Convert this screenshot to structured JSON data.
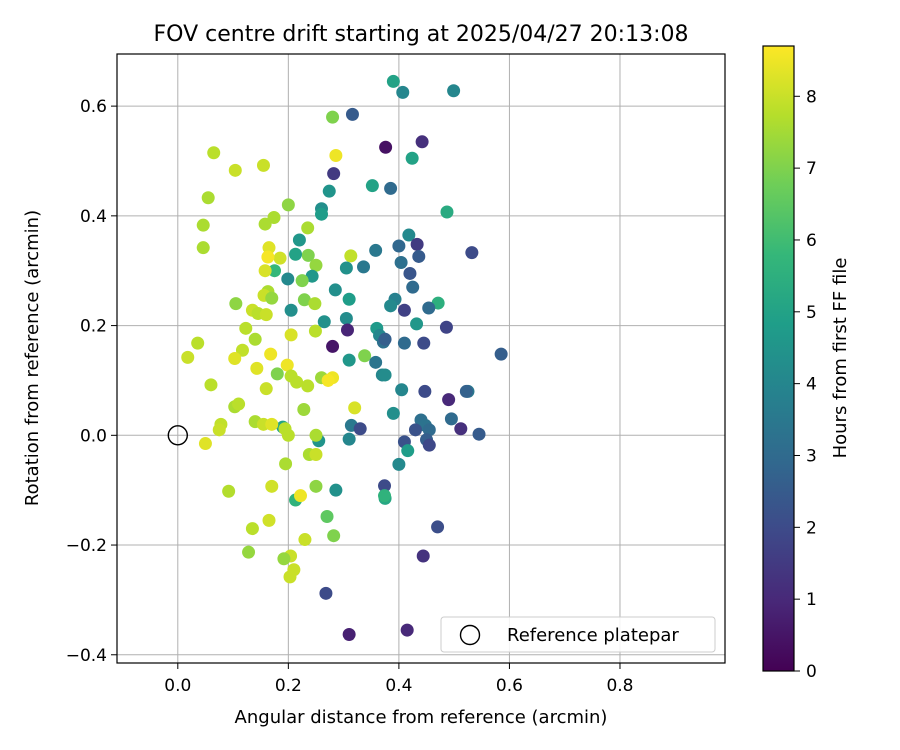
{
  "chart_data": {
    "type": "scatter",
    "title": "FOV centre drift starting at 2025/04/27 20:13:08",
    "xlabel": "Angular distance from reference (arcmin)",
    "ylabel": "Rotation from reference (arcmin)",
    "xlim": [
      -0.11,
      0.99
    ],
    "ylim": [
      -0.415,
      0.695
    ],
    "xticks": [
      0.0,
      0.2,
      0.4,
      0.6,
      0.8
    ],
    "xtick_labels": [
      "0.0",
      "0.2",
      "0.4",
      "0.6",
      "0.8"
    ],
    "yticks": [
      -0.4,
      -0.2,
      0.0,
      0.2,
      0.4,
      0.6
    ],
    "ytick_labels": [
      "−0.4",
      "−0.2",
      "0.0",
      "0.2",
      "0.4",
      "0.6"
    ],
    "grid": true,
    "legend": {
      "placement": "lower-right",
      "entries": [
        {
          "label": "Reference platepar",
          "marker": "open-circle"
        }
      ]
    },
    "reference_point": {
      "x": 0.0,
      "y": 0.0
    },
    "colorbar": {
      "label": "Hours from first FF file",
      "colormap": "viridis",
      "range": [
        0,
        8.7
      ],
      "ticks": [
        0,
        1,
        2,
        3,
        4,
        5,
        6,
        7,
        8
      ],
      "tick_labels": [
        "0",
        "1",
        "2",
        "3",
        "4",
        "5",
        "6",
        "7",
        "8"
      ],
      "stops": [
        "#440154",
        "#482878",
        "#3e4989",
        "#31688e",
        "#26828e",
        "#1f9e89",
        "#35b779",
        "#6ece58",
        "#b5de2b",
        "#fde725"
      ]
    },
    "points": [
      [
        0.39,
        0.645,
        5.0
      ],
      [
        0.407,
        0.625,
        4.0
      ],
      [
        0.499,
        0.628,
        4.0
      ],
      [
        0.316,
        0.585,
        2.5
      ],
      [
        0.28,
        0.58,
        7.0
      ],
      [
        0.442,
        0.535,
        1.2
      ],
      [
        0.376,
        0.525,
        0.4
      ],
      [
        0.424,
        0.505,
        5.0
      ],
      [
        0.286,
        0.51,
        8.5
      ],
      [
        0.065,
        0.515,
        7.8
      ],
      [
        0.155,
        0.492,
        8.0
      ],
      [
        0.104,
        0.483,
        8.0
      ],
      [
        0.282,
        0.477,
        1.5
      ],
      [
        0.352,
        0.455,
        5.0
      ],
      [
        0.385,
        0.45,
        3.0
      ],
      [
        0.274,
        0.445,
        4.5
      ],
      [
        0.055,
        0.433,
        7.6
      ],
      [
        0.2,
        0.42,
        7.2
      ],
      [
        0.26,
        0.413,
        4.3
      ],
      [
        0.487,
        0.407,
        5.3
      ],
      [
        0.26,
        0.403,
        4.8
      ],
      [
        0.174,
        0.397,
        7.6
      ],
      [
        0.158,
        0.385,
        7.6
      ],
      [
        0.046,
        0.383,
        7.6
      ],
      [
        0.235,
        0.378,
        7.6
      ],
      [
        0.418,
        0.365,
        4.1
      ],
      [
        0.22,
        0.356,
        4.6
      ],
      [
        0.4,
        0.345,
        2.9
      ],
      [
        0.433,
        0.348,
        1.5
      ],
      [
        0.046,
        0.342,
        7.6
      ],
      [
        0.165,
        0.342,
        8.3
      ],
      [
        0.358,
        0.337,
        3.5
      ],
      [
        0.532,
        0.333,
        2.0
      ],
      [
        0.236,
        0.328,
        7.0
      ],
      [
        0.213,
        0.33,
        5.0
      ],
      [
        0.313,
        0.327,
        7.9
      ],
      [
        0.185,
        0.323,
        8.1
      ],
      [
        0.163,
        0.325,
        8.6
      ],
      [
        0.436,
        0.326,
        2.5
      ],
      [
        0.404,
        0.315,
        3.2
      ],
      [
        0.25,
        0.31,
        7.3
      ],
      [
        0.336,
        0.307,
        3.5
      ],
      [
        0.305,
        0.305,
        4.4
      ],
      [
        0.175,
        0.3,
        5.8
      ],
      [
        0.158,
        0.3,
        8.2
      ],
      [
        0.42,
        0.295,
        2.3
      ],
      [
        0.243,
        0.29,
        4.6
      ],
      [
        0.199,
        0.285,
        4.1
      ],
      [
        0.225,
        0.282,
        7.0
      ],
      [
        0.425,
        0.27,
        3.0
      ],
      [
        0.285,
        0.265,
        4.3
      ],
      [
        0.163,
        0.262,
        7.6
      ],
      [
        0.156,
        0.255,
        8.0
      ],
      [
        0.17,
        0.25,
        7.3
      ],
      [
        0.229,
        0.247,
        7.0
      ],
      [
        0.393,
        0.248,
        3.8
      ],
      [
        0.31,
        0.248,
        4.8
      ],
      [
        0.105,
        0.24,
        7.2
      ],
      [
        0.471,
        0.241,
        5.5
      ],
      [
        0.248,
        0.24,
        7.6
      ],
      [
        0.385,
        0.236,
        4.1
      ],
      [
        0.135,
        0.228,
        8.0
      ],
      [
        0.205,
        0.228,
        4.3
      ],
      [
        0.454,
        0.232,
        3.0
      ],
      [
        0.41,
        0.228,
        1.7
      ],
      [
        0.145,
        0.222,
        7.8
      ],
      [
        0.16,
        0.22,
        8.0
      ],
      [
        0.265,
        0.207,
        4.4
      ],
      [
        0.305,
        0.213,
        4.2
      ],
      [
        0.432,
        0.203,
        4.6
      ],
      [
        0.123,
        0.195,
        7.8
      ],
      [
        0.486,
        0.197,
        1.8
      ],
      [
        0.36,
        0.195,
        4.7
      ],
      [
        0.307,
        0.192,
        0.9
      ],
      [
        0.249,
        0.19,
        7.8
      ],
      [
        0.365,
        0.182,
        4.0
      ],
      [
        0.372,
        0.17,
        3.2
      ],
      [
        0.375,
        0.175,
        2.6
      ],
      [
        0.41,
        0.168,
        3.0
      ],
      [
        0.445,
        0.168,
        2.0
      ],
      [
        0.205,
        0.183,
        8.2
      ],
      [
        0.28,
        0.162,
        0.5
      ],
      [
        0.14,
        0.175,
        7.6
      ],
      [
        0.036,
        0.168,
        7.8
      ],
      [
        0.117,
        0.155,
        7.9
      ],
      [
        0.585,
        0.148,
        2.6
      ],
      [
        0.018,
        0.142,
        8.0
      ],
      [
        0.168,
        0.148,
        8.5
      ],
      [
        0.103,
        0.14,
        8.3
      ],
      [
        0.338,
        0.145,
        7.0
      ],
      [
        0.31,
        0.137,
        4.6
      ],
      [
        0.358,
        0.133,
        3.4
      ],
      [
        0.143,
        0.122,
        8.3
      ],
      [
        0.198,
        0.128,
        8.5
      ],
      [
        0.18,
        0.112,
        7.0
      ],
      [
        0.205,
        0.108,
        7.8
      ],
      [
        0.37,
        0.11,
        4.0
      ],
      [
        0.375,
        0.11,
        4.2
      ],
      [
        0.26,
        0.105,
        7.4
      ],
      [
        0.28,
        0.105,
        8.5
      ],
      [
        0.272,
        0.1,
        8.6
      ],
      [
        0.215,
        0.097,
        7.8
      ],
      [
        0.235,
        0.09,
        7.8
      ],
      [
        0.06,
        0.092,
        7.8
      ],
      [
        0.16,
        0.085,
        8.0
      ],
      [
        0.405,
        0.083,
        4.0
      ],
      [
        0.447,
        0.08,
        2.0
      ],
      [
        0.525,
        0.08,
        3.5
      ],
      [
        0.522,
        0.08,
        2.7
      ],
      [
        0.49,
        0.065,
        1.0
      ],
      [
        0.103,
        0.052,
        7.6
      ],
      [
        0.11,
        0.057,
        7.8
      ],
      [
        0.32,
        0.05,
        8.2
      ],
      [
        0.39,
        0.04,
        4.3
      ],
      [
        0.228,
        0.047,
        7.4
      ],
      [
        0.495,
        0.03,
        3.0
      ],
      [
        0.44,
        0.028,
        3.2
      ],
      [
        0.14,
        0.025,
        7.6
      ],
      [
        0.155,
        0.02,
        8.0
      ],
      [
        0.19,
        0.015,
        5.0
      ],
      [
        0.078,
        0.02,
        7.9
      ],
      [
        0.194,
        0.012,
        7.8
      ],
      [
        0.17,
        0.02,
        8.3
      ],
      [
        0.314,
        0.018,
        3.5
      ],
      [
        0.33,
        0.012,
        2.0
      ],
      [
        0.448,
        0.018,
        3.3
      ],
      [
        0.43,
        0.01,
        2.2
      ],
      [
        0.455,
        0.01,
        3.0
      ],
      [
        0.512,
        0.012,
        1.2
      ],
      [
        0.545,
        0.002,
        2.5
      ],
      [
        0.075,
        0.01,
        8.0
      ],
      [
        0.2,
        0.0,
        7.8
      ],
      [
        0.255,
        -0.01,
        4.5
      ],
      [
        0.25,
        0.0,
        7.6
      ],
      [
        0.31,
        -0.007,
        4.0
      ],
      [
        0.41,
        -0.012,
        2.2
      ],
      [
        0.45,
        -0.008,
        2.6
      ],
      [
        0.455,
        -0.018,
        1.9
      ],
      [
        0.05,
        -0.015,
        8.3
      ],
      [
        0.416,
        -0.028,
        4.8
      ],
      [
        0.238,
        -0.035,
        7.6
      ],
      [
        0.25,
        -0.035,
        8.0
      ],
      [
        0.4,
        -0.053,
        4.1
      ],
      [
        0.195,
        -0.052,
        7.6
      ],
      [
        0.092,
        -0.102,
        7.7
      ],
      [
        0.17,
        -0.093,
        8.1
      ],
      [
        0.25,
        -0.093,
        7.2
      ],
      [
        0.286,
        -0.1,
        4.4
      ],
      [
        0.374,
        -0.092,
        2.0
      ],
      [
        0.375,
        -0.115,
        5.2
      ],
      [
        0.374,
        -0.11,
        5.6
      ],
      [
        0.213,
        -0.118,
        5.6
      ],
      [
        0.222,
        -0.11,
        8.5
      ],
      [
        0.135,
        -0.17,
        7.8
      ],
      [
        0.165,
        -0.155,
        8.1
      ],
      [
        0.27,
        -0.148,
        6.5
      ],
      [
        0.47,
        -0.167,
        2.1
      ],
      [
        0.282,
        -0.183,
        7.0
      ],
      [
        0.23,
        -0.19,
        8.0
      ],
      [
        0.128,
        -0.213,
        7.3
      ],
      [
        0.204,
        -0.22,
        8.0
      ],
      [
        0.192,
        -0.225,
        7.3
      ],
      [
        0.444,
        -0.22,
        1.3
      ],
      [
        0.21,
        -0.245,
        8.0
      ],
      [
        0.203,
        -0.258,
        8.0
      ],
      [
        0.268,
        -0.288,
        2.0
      ],
      [
        0.31,
        -0.363,
        0.8
      ],
      [
        0.415,
        -0.355,
        1.0
      ]
    ]
  }
}
